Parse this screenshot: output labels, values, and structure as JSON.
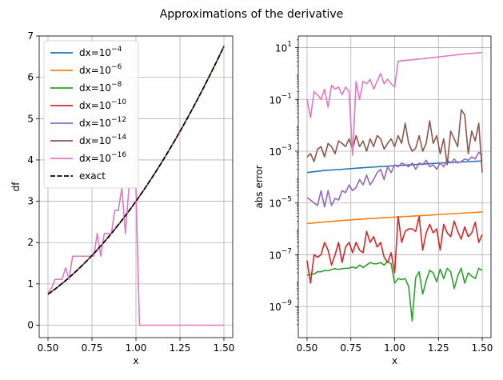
{
  "figure": {
    "suptitle": "Approximations of the derivative"
  },
  "colors": {
    "dx=10^-4": "#1f77b4",
    "dx=10^-6": "#ff7f0e",
    "dx=10^-8": "#2ca02c",
    "dx=10^-10": "#d62728",
    "dx=10^-12": "#9467bd",
    "dx=10^-14": "#8c564b",
    "dx=10^-16": "#e377c2",
    "exact": "#000000",
    "grid": "#b0b0b0"
  },
  "chart_data": [
    {
      "type": "line",
      "xlabel": "x",
      "ylabel": "df",
      "xlim": [
        0.45,
        1.55
      ],
      "ylim": [
        -0.3,
        7.0
      ],
      "x_ticks": [
        0.5,
        0.75,
        1.0,
        1.25,
        1.5
      ],
      "x_tick_labels": [
        "0.50",
        "0.75",
        "1.00",
        "1.25",
        "1.50"
      ],
      "y_ticks": [
        0,
        1,
        2,
        3,
        4,
        5,
        6,
        7
      ],
      "y_tick_labels": [
        "0",
        "1",
        "2",
        "3",
        "4",
        "5",
        "6",
        "7"
      ],
      "grid": true,
      "legend_position": "upper-left",
      "series": [
        {
          "name": "dx=10^-4",
          "legend_base": "dx=10",
          "legend_exp": "−4",
          "color": "#1f77b4",
          "dash": "solid",
          "func": "exact"
        },
        {
          "name": "dx=10^-6",
          "legend_base": "dx=10",
          "legend_exp": "−6",
          "color": "#ff7f0e",
          "dash": "solid",
          "func": "exact"
        },
        {
          "name": "dx=10^-8",
          "legend_base": "dx=10",
          "legend_exp": "−8",
          "color": "#2ca02c",
          "dash": "solid",
          "func": "exact"
        },
        {
          "name": "dx=10^-10",
          "legend_base": "dx=10",
          "legend_exp": "−10",
          "color": "#d62728",
          "dash": "solid",
          "func": "exact"
        },
        {
          "name": "dx=10^-12",
          "legend_base": "dx=10",
          "legend_exp": "−12",
          "color": "#9467bd",
          "dash": "solid",
          "func": "exact"
        },
        {
          "name": "dx=10^-14",
          "legend_base": "dx=10",
          "legend_exp": "−14",
          "color": "#8c564b",
          "dash": "solid",
          "func": "exact"
        },
        {
          "name": "dx=10^-16",
          "legend_base": "dx=10",
          "legend_exp": "−16",
          "color": "#e377c2",
          "dash": "solid",
          "x": [
            0.5,
            0.52,
            0.54,
            0.56,
            0.58,
            0.6,
            0.62,
            0.64,
            0.66,
            0.68,
            0.7,
            0.72,
            0.74,
            0.76,
            0.78,
            0.8,
            0.82,
            0.84,
            0.86,
            0.88,
            0.9,
            0.92,
            0.94,
            0.96,
            0.98,
            1.0,
            1.02,
            1.1,
            1.2,
            1.3,
            1.4,
            1.5
          ],
          "y": [
            0.78,
            0.9,
            1.11,
            1.11,
            1.11,
            1.39,
            1.11,
            1.67,
            1.67,
            1.67,
            1.67,
            1.67,
            1.67,
            1.67,
            2.22,
            1.67,
            2.22,
            2.22,
            2.22,
            2.78,
            2.78,
            3.33,
            2.22,
            3.33,
            3.33,
            3.33,
            0.0,
            0.0,
            0.0,
            0.0,
            0.0,
            0.0
          ]
        },
        {
          "name": "exact",
          "legend_base": "exact",
          "legend_exp": "",
          "color": "#000000",
          "dash": "dashed",
          "func": "exact"
        }
      ]
    },
    {
      "type": "line",
      "xlabel": "x",
      "ylabel": "abs error",
      "xlim": [
        0.45,
        1.55
      ],
      "ylim_log10": [
        -10.2,
        1.45
      ],
      "y_scale": "log",
      "x_ticks": [
        0.5,
        0.75,
        1.0,
        1.25,
        1.5
      ],
      "x_tick_labels": [
        "0.50",
        "0.75",
        "1.00",
        "1.25",
        "1.50"
      ],
      "y_tick_exponents": [
        1,
        -1,
        -3,
        -5,
        -7,
        -9
      ],
      "y_tick_base": "10",
      "y_tick_exp_labels": [
        "1",
        "−1",
        "−3",
        "−5",
        "−7",
        "−9"
      ],
      "grid": true,
      "series": [
        {
          "name": "dx=10^-4",
          "color": "#1f77b4",
          "x": [
            0.5,
            0.55,
            0.6,
            0.7,
            0.8,
            0.9,
            1.0,
            1.1,
            1.2,
            1.3,
            1.4,
            1.5
          ],
          "y": [
            0.00015,
            0.000165,
            0.00018,
            0.0002,
            0.000225,
            0.00025,
            0.000275,
            0.0003,
            0.00033,
            0.00036,
            0.00039,
            0.00042
          ]
        },
        {
          "name": "dx=10^-6",
          "color": "#ff7f0e",
          "x": [
            0.5,
            0.6,
            0.7,
            0.8,
            0.9,
            1.0,
            1.1,
            1.2,
            1.3,
            1.4,
            1.5
          ],
          "y": [
            1.6e-06,
            1.85e-06,
            2.1e-06,
            2.35e-06,
            2.6e-06,
            2.85e-06,
            3.1e-06,
            3.4e-06,
            3.75e-06,
            4.1e-06,
            4.5e-06
          ]
        },
        {
          "name": "dx=10^-8",
          "color": "#2ca02c",
          "x": [
            0.5,
            0.52,
            0.54,
            0.56,
            0.58,
            0.6,
            0.62,
            0.64,
            0.66,
            0.68,
            0.7,
            0.72,
            0.74,
            0.76,
            0.78,
            0.8,
            0.82,
            0.84,
            0.86,
            0.88,
            0.9,
            0.92,
            0.94,
            0.96,
            0.98,
            1.0,
            1.02,
            1.04,
            1.06,
            1.08,
            1.1,
            1.12,
            1.14,
            1.16,
            1.18,
            1.2,
            1.22,
            1.24,
            1.26,
            1.28,
            1.3,
            1.32,
            1.34,
            1.36,
            1.38,
            1.4,
            1.42,
            1.44,
            1.46,
            1.48,
            1.5
          ],
          "y": [
            1.6e-08,
            1.8e-08,
            1.8e-08,
            2.2e-08,
            2.2e-08,
            2.5e-08,
            2.4e-08,
            2.7e-08,
            2.9e-08,
            2.7e-08,
            2.9e-08,
            3e-08,
            3e-08,
            3.4e-08,
            3e-08,
            4e-08,
            3.2e-08,
            4e-08,
            5e-08,
            4.5e-08,
            4.5e-08,
            5e-08,
            4e-08,
            5.5e-08,
            4.5e-08,
            8e-09,
            1.2e-08,
            1.1e-08,
            1.2e-08,
            6e-09,
            2.8e-10,
            1.3e-08,
            2.2e-08,
            3e-09,
            1e-08,
            2.5e-08,
            2e-08,
            9e-09,
            2.8e-08,
            1.2e-08,
            3e-08,
            2.2e-08,
            5e-09,
            1.5e-08,
            3e-08,
            8e-09,
            2e-08,
            1.5e-08,
            1.2e-08,
            3e-08,
            2.5e-08
          ]
        },
        {
          "name": "dx=10^-10",
          "color": "#d62728",
          "x": [
            0.5,
            0.52,
            0.54,
            0.56,
            0.58,
            0.6,
            0.62,
            0.64,
            0.66,
            0.68,
            0.7,
            0.72,
            0.74,
            0.76,
            0.78,
            0.8,
            0.82,
            0.84,
            0.86,
            0.88,
            0.9,
            0.92,
            0.94,
            0.96,
            0.98,
            1.0,
            1.02,
            1.04,
            1.06,
            1.08,
            1.1,
            1.12,
            1.14,
            1.16,
            1.18,
            1.2,
            1.22,
            1.24,
            1.26,
            1.28,
            1.3,
            1.32,
            1.34,
            1.36,
            1.38,
            1.4,
            1.42,
            1.44,
            1.46,
            1.48,
            1.5
          ],
          "y": [
            6e-08,
            8e-09,
            1e-07,
            8e-08,
            1e-07,
            3e-07,
            1.5e-07,
            4e-08,
            1e-07,
            3e-07,
            5e-08,
            2e-07,
            3e-07,
            1.2e-07,
            3e-07,
            1.5e-07,
            1.2e-07,
            8e-07,
            3e-07,
            5e-07,
            2e-07,
            3e-07,
            8e-08,
            5e-08,
            1.2e-07,
            2e-08,
            3e-06,
            3e-07,
            8e-07,
            1e-06,
            1e-06,
            8e-07,
            3e-06,
            1.5e-07,
            7e-07,
            1.5e-06,
            7e-07,
            1e-06,
            1.5e-07,
            1.5e-06,
            7e-07,
            5e-07,
            2e-06,
            8e-07,
            4e-07,
            1.2e-06,
            5e-07,
            7e-07,
            1.8e-06,
            3e-07,
            6e-07
          ]
        },
        {
          "name": "dx=10^-12",
          "color": "#9467bd",
          "x": [
            0.5,
            0.52,
            0.54,
            0.56,
            0.58,
            0.6,
            0.62,
            0.64,
            0.66,
            0.68,
            0.7,
            0.72,
            0.74,
            0.76,
            0.78,
            0.8,
            0.82,
            0.84,
            0.86,
            0.88,
            0.9,
            0.92,
            0.94,
            0.96,
            0.98,
            1.0,
            1.02,
            1.04,
            1.06,
            1.08,
            1.1,
            1.12,
            1.14,
            1.16,
            1.18,
            1.2,
            1.22,
            1.24,
            1.26,
            1.28,
            1.3,
            1.32,
            1.34,
            1.36,
            1.38,
            1.4,
            1.42,
            1.44,
            1.46,
            1.48,
            1.5
          ],
          "y": [
            1.6e-05,
            1.3e-05,
            1e-05,
            8e-06,
            3e-05,
            7e-06,
            3e-05,
            8e-06,
            1.5e-05,
            1.3e-05,
            3e-05,
            2.5e-05,
            5e-05,
            3e-05,
            4e-05,
            8e-05,
            5e-05,
            0.00012,
            5e-05,
            8e-05,
            0.00015,
            0.0002,
            8e-05,
            0.00025,
            0.00015,
            0.0003,
            0.00025,
            0.00035,
            0.0003,
            0.00025,
            0.00035,
            0.0002,
            0.00035,
            0.0003,
            0.00045,
            0.00025,
            0.0003,
            0.0002,
            0.00035,
            0.00025,
            0.00045,
            0.00035,
            0.0005,
            0.00035,
            0.0004,
            0.0005,
            0.00045,
            0.0006,
            0.0005,
            0.0009,
            0.0007
          ]
        },
        {
          "name": "dx=10^-14",
          "color": "#8c564b",
          "x": [
            0.5,
            0.52,
            0.54,
            0.56,
            0.58,
            0.6,
            0.62,
            0.64,
            0.66,
            0.68,
            0.7,
            0.72,
            0.74,
            0.76,
            0.78,
            0.8,
            0.82,
            0.84,
            0.86,
            0.88,
            0.9,
            0.92,
            0.94,
            0.96,
            0.98,
            1.0,
            1.02,
            1.04,
            1.06,
            1.08,
            1.1,
            1.12,
            1.14,
            1.16,
            1.18,
            1.2,
            1.22,
            1.24,
            1.26,
            1.28,
            1.3,
            1.32,
            1.34,
            1.36,
            1.38,
            1.4,
            1.42,
            1.44,
            1.46,
            1.48,
            1.5
          ],
          "y": [
            0.0006,
            0.0008,
            0.0004,
            0.0012,
            0.0015,
            0.0006,
            0.002,
            0.0015,
            0.0008,
            0.0025,
            0.002,
            0.0015,
            0.003,
            0.0012,
            0.004,
            0.0015,
            0.0025,
            0.001,
            0.003,
            0.0015,
            0.004,
            0.003,
            0.0012,
            0.002,
            0.003,
            0.0015,
            0.004,
            0.002,
            0.012,
            0.002,
            0.001,
            0.0013,
            0.004,
            0.001,
            0.002,
            0.015,
            0.002,
            0.004,
            0.0008,
            0.003,
            0.0003,
            0.006,
            0.003,
            0.0015,
            0.04,
            0.025,
            0.0008,
            0.006,
            0.0025,
            0.012,
            0.00015
          ]
        },
        {
          "name": "dx=10^-16",
          "color": "#e377c2",
          "x": [
            0.5,
            0.52,
            0.54,
            0.56,
            0.58,
            0.6,
            0.62,
            0.64,
            0.66,
            0.68,
            0.7,
            0.72,
            0.74,
            0.76,
            0.78,
            0.8,
            0.82,
            0.84,
            0.86,
            0.88,
            0.9,
            0.92,
            0.94,
            0.96,
            0.98,
            1.0,
            1.02,
            1.1,
            1.2,
            1.3,
            1.4,
            1.5
          ],
          "y": [
            0.1,
            0.02,
            0.2,
            0.15,
            0.1,
            0.25,
            0.05,
            0.35,
            0.25,
            0.3,
            0.15,
            0.3,
            0.2,
            0.0007,
            0.5,
            0.1,
            0.5,
            0.4,
            0.6,
            0.25,
            0.5,
            1.0,
            0.4,
            0.6,
            0.4,
            0.3,
            3.0,
            3.4,
            4.0,
            4.8,
            5.7,
            6.5
          ]
        }
      ]
    }
  ]
}
